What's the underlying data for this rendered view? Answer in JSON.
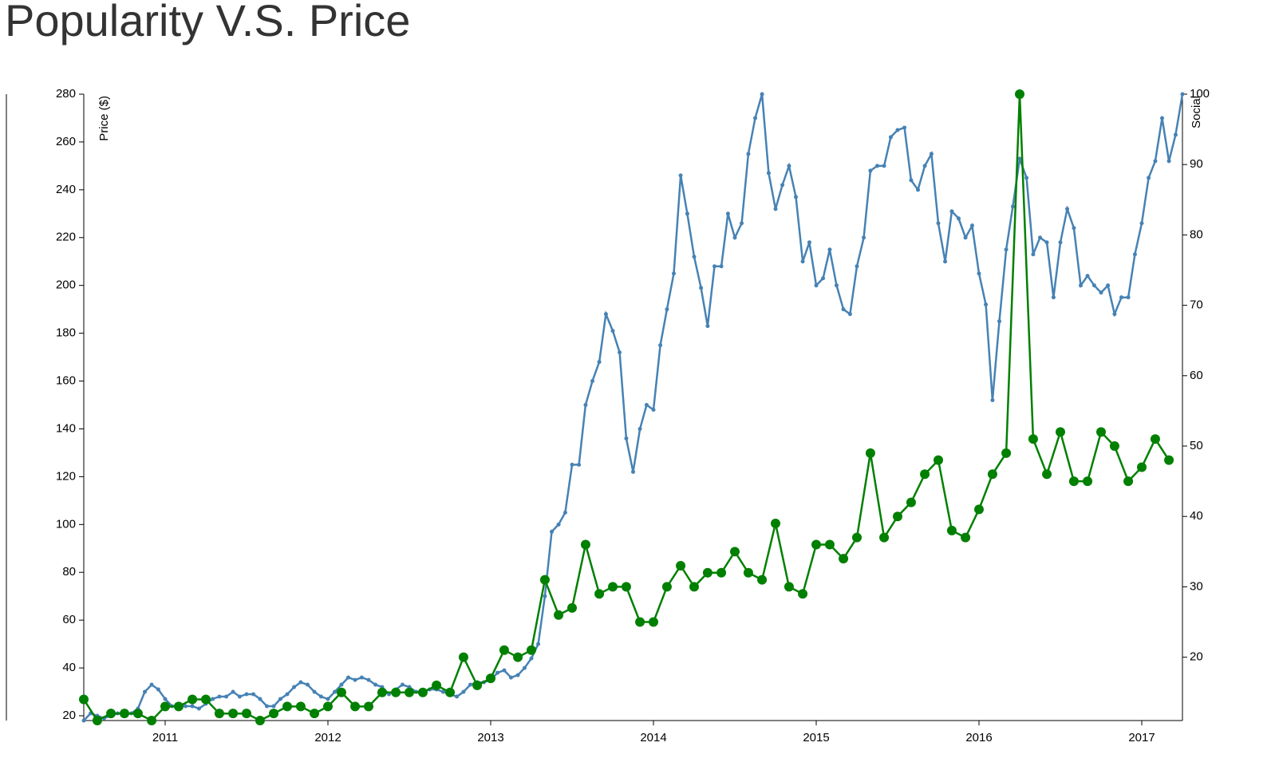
{
  "chart_data": {
    "type": "line",
    "title": "Popularity V.S. Price",
    "y_label": "Price ($)",
    "y2_label": "Social",
    "xlim": [
      2010.5,
      2017.25
    ],
    "xticks": [
      2011,
      2012,
      2013,
      2014,
      2015,
      2016,
      2017
    ],
    "ylim": [
      18,
      280
    ],
    "yticks": [
      20,
      40,
      60,
      80,
      100,
      120,
      140,
      160,
      180,
      200,
      220,
      240,
      260,
      280
    ],
    "y2lim": [
      11,
      100
    ],
    "y2ticks": [
      20,
      30,
      40,
      50,
      60,
      70,
      80,
      90,
      100
    ],
    "series": [
      {
        "name": "Price ($)",
        "color": "#4682b4",
        "axis": "y",
        "marker_size": 2.5,
        "x": [
          2010.5,
          2010.542,
          2010.583,
          2010.625,
          2010.667,
          2010.708,
          2010.75,
          2010.792,
          2010.833,
          2010.875,
          2010.917,
          2010.958,
          2011,
          2011.042,
          2011.083,
          2011.125,
          2011.167,
          2011.208,
          2011.25,
          2011.292,
          2011.333,
          2011.375,
          2011.417,
          2011.458,
          2011.5,
          2011.542,
          2011.583,
          2011.625,
          2011.667,
          2011.708,
          2011.75,
          2011.792,
          2011.833,
          2011.875,
          2011.917,
          2011.958,
          2012,
          2012.042,
          2012.083,
          2012.125,
          2012.167,
          2012.208,
          2012.25,
          2012.292,
          2012.333,
          2012.375,
          2012.417,
          2012.458,
          2012.5,
          2012.542,
          2012.583,
          2012.625,
          2012.667,
          2012.708,
          2012.75,
          2012.792,
          2012.833,
          2012.875,
          2012.917,
          2012.958,
          2013,
          2013.042,
          2013.083,
          2013.125,
          2013.167,
          2013.208,
          2013.25,
          2013.292,
          2013.333,
          2013.375,
          2013.417,
          2013.458,
          2013.5,
          2013.542,
          2013.583,
          2013.625,
          2013.667,
          2013.708,
          2013.75,
          2013.792,
          2013.833,
          2013.875,
          2013.917,
          2013.958,
          2014,
          2014.042,
          2014.083,
          2014.125,
          2014.167,
          2014.208,
          2014.25,
          2014.292,
          2014.333,
          2014.375,
          2014.417,
          2014.458,
          2014.5,
          2014.542,
          2014.583,
          2014.625,
          2014.667,
          2014.708,
          2014.75,
          2014.792,
          2014.833,
          2014.875,
          2014.917,
          2014.958,
          2015,
          2015.042,
          2015.083,
          2015.125,
          2015.167,
          2015.208,
          2015.25,
          2015.292,
          2015.333,
          2015.375,
          2015.417,
          2015.458,
          2015.5,
          2015.542,
          2015.583,
          2015.625,
          2015.667,
          2015.708,
          2015.75,
          2015.792,
          2015.833,
          2015.875,
          2015.917,
          2015.958,
          2016,
          2016.042,
          2016.083,
          2016.125,
          2016.167,
          2016.208,
          2016.25,
          2016.292,
          2016.333,
          2016.375,
          2016.417,
          2016.458,
          2016.5,
          2016.542,
          2016.583,
          2016.625,
          2016.667,
          2016.708,
          2016.75,
          2016.792,
          2016.833,
          2016.875,
          2016.917,
          2016.958,
          2017,
          2017.042,
          2017.083,
          2017.125,
          2017.167,
          2017.208,
          2017.25
        ],
        "values": [
          18,
          21,
          20,
          19,
          20,
          21,
          21,
          21,
          23,
          30,
          33,
          31,
          27,
          24,
          24,
          24,
          24,
          23,
          25,
          27,
          28,
          28,
          30,
          28,
          29,
          29,
          27,
          24,
          24,
          27,
          29,
          32,
          34,
          33,
          30,
          28,
          27,
          30,
          33,
          36,
          35,
          36,
          35,
          33,
          32,
          29,
          31,
          33,
          32,
          30,
          30,
          31,
          31,
          30,
          29,
          28,
          30,
          33,
          34,
          34,
          35,
          38,
          39,
          36,
          37,
          40,
          44,
          50,
          70,
          97,
          100,
          105,
          125,
          125,
          150,
          160,
          168,
          188,
          181,
          172,
          136,
          122,
          140,
          150,
          148,
          175,
          190,
          205,
          246,
          230,
          212,
          199,
          183,
          208,
          208,
          230,
          220,
          226,
          255,
          270,
          280,
          247,
          232,
          242,
          250,
          237,
          210,
          218,
          200,
          203,
          215,
          200,
          190,
          188,
          208,
          220,
          248,
          250,
          250,
          262,
          265,
          266,
          244,
          240,
          250,
          255,
          226,
          210,
          231,
          228,
          220,
          225,
          205,
          192,
          152,
          185,
          215,
          233,
          253,
          245,
          213,
          220,
          218,
          195,
          218,
          232,
          224,
          200,
          204,
          200,
          197,
          200,
          188,
          195,
          195,
          213,
          226,
          245,
          252,
          270,
          252,
          263,
          280
        ]
      },
      {
        "name": "Social",
        "color": "#008000",
        "axis": "y2",
        "marker_size": 6,
        "x": [
          2010.5,
          2010.583,
          2010.667,
          2010.75,
          2010.833,
          2010.917,
          2011,
          2011.083,
          2011.167,
          2011.25,
          2011.333,
          2011.417,
          2011.5,
          2011.583,
          2011.667,
          2011.75,
          2011.833,
          2011.917,
          2012,
          2012.083,
          2012.167,
          2012.25,
          2012.333,
          2012.417,
          2012.5,
          2012.583,
          2012.667,
          2012.75,
          2012.833,
          2012.917,
          2013,
          2013.083,
          2013.167,
          2013.25,
          2013.333,
          2013.417,
          2013.5,
          2013.583,
          2013.667,
          2013.75,
          2013.833,
          2013.917,
          2014,
          2014.083,
          2014.167,
          2014.25,
          2014.333,
          2014.417,
          2014.5,
          2014.583,
          2014.667,
          2014.75,
          2014.833,
          2014.917,
          2015,
          2015.083,
          2015.167,
          2015.25,
          2015.333,
          2015.417,
          2015.5,
          2015.583,
          2015.667,
          2015.75,
          2015.833,
          2015.917,
          2016,
          2016.083,
          2016.167,
          2016.25,
          2016.333,
          2016.417,
          2016.5,
          2016.583,
          2016.667,
          2016.75,
          2016.833,
          2016.917,
          2017,
          2017.083,
          2017.167
        ],
        "values": [
          14,
          11,
          12,
          12,
          12,
          11,
          13,
          13,
          14,
          14,
          12,
          12,
          12,
          11,
          12,
          13,
          13,
          12,
          13,
          15,
          13,
          13,
          15,
          15,
          15,
          15,
          16,
          15,
          20,
          16,
          17,
          21,
          20,
          21,
          31,
          26,
          27,
          36,
          29,
          30,
          30,
          25,
          25,
          30,
          33,
          30,
          32,
          32,
          35,
          32,
          31,
          39,
          30,
          29,
          36,
          36,
          34,
          37,
          49,
          37,
          40,
          42,
          46,
          48,
          38,
          37,
          41,
          46,
          49,
          100,
          51,
          46,
          52,
          45,
          45,
          52,
          50,
          45,
          47,
          51,
          48
        ]
      }
    ]
  }
}
